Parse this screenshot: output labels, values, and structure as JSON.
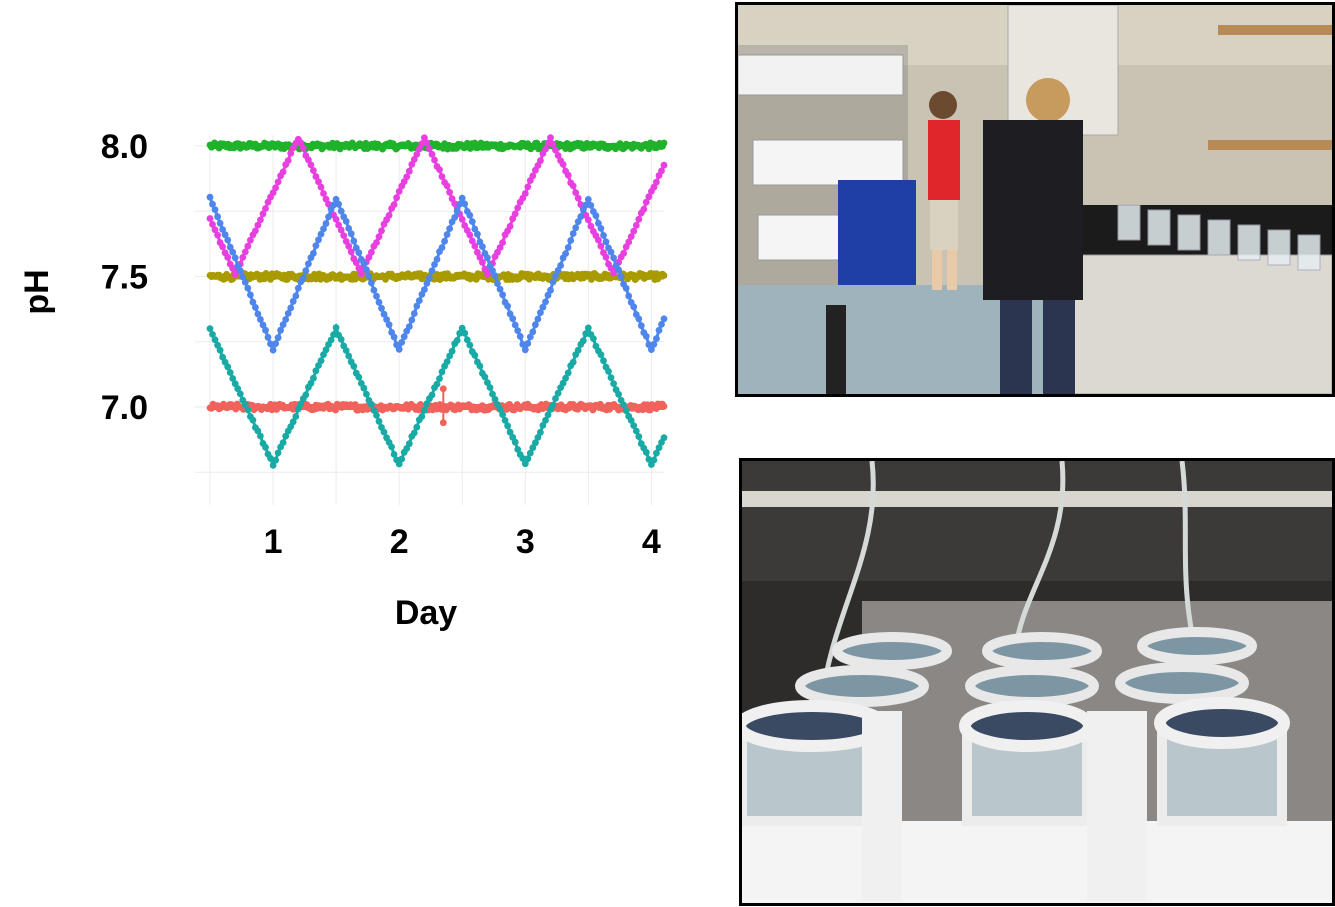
{
  "chart_data": {
    "type": "scatter",
    "xlabel": "Day",
    "ylabel": "pH",
    "x_ticks": [
      "1",
      "2",
      "3",
      "4"
    ],
    "x_tick_values": [
      1,
      2,
      3,
      4
    ],
    "y_ticks": [
      "7.0",
      "7.5",
      "8.0"
    ],
    "y_tick_values": [
      7.0,
      7.5,
      8.0
    ],
    "xlim": [
      0.5,
      4.1
    ],
    "ylim": [
      6.78,
      8.04
    ],
    "grid": true,
    "legend": "none",
    "series": [
      {
        "color": "#1fb22a",
        "pattern": "constant",
        "mean": 8.0,
        "noise": 0.012,
        "x_start": 0.5,
        "x_end": 4.1,
        "step": 0.012
      },
      {
        "color": "#a89b00",
        "pattern": "constant",
        "mean": 7.5,
        "noise": 0.012,
        "x_start": 0.5,
        "x_end": 4.1,
        "step": 0.012
      },
      {
        "color": "#f0625b",
        "pattern": "constant",
        "mean": 7.0,
        "noise": 0.012,
        "x_start": 0.5,
        "x_end": 4.1,
        "step": 0.012,
        "error_bar": {
          "x": 2.35,
          "y": 7.0,
          "low": 6.94,
          "high": 7.07
        }
      },
      {
        "color": "#e83fe0",
        "pattern": "triangle",
        "peaks": [
          8.03,
          7.51
        ],
        "period": 1.0,
        "phase_peak_x": 1.2,
        "x_start": 0.5,
        "x_end": 4.1,
        "step": 0.02
      },
      {
        "color": "#4f86ec",
        "pattern": "triangle",
        "peaks": [
          7.8,
          7.22
        ],
        "period": 1.0,
        "phase_peak_x": 1.5,
        "x_start": 0.5,
        "x_end": 4.1,
        "step": 0.02
      },
      {
        "color": "#19aaa5",
        "pattern": "triangle",
        "peaks": [
          7.3,
          6.78
        ],
        "period": 1.0,
        "phase_peak_x": 1.5,
        "x_start": 0.5,
        "x_end": 4.1,
        "step": 0.02
      }
    ]
  },
  "photos": {
    "lab": "photo-two-researchers-in-lab",
    "tanks": "photo-culture-tanks-with-tubing"
  }
}
